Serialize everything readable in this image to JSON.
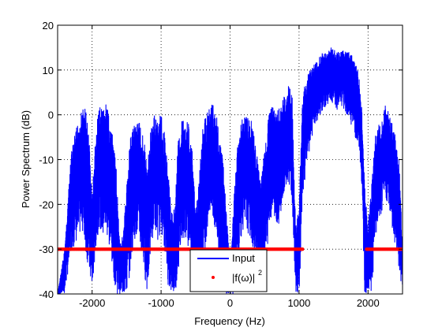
{
  "chart_data": {
    "type": "line",
    "title": "",
    "xlabel": "Frequency (Hz)",
    "ylabel": "Power Spectrum (dB)",
    "xlim": [
      -2500,
      2500
    ],
    "ylim": [
      -40,
      20
    ],
    "x_ticks": [
      -2000,
      -1000,
      0,
      1000,
      2000
    ],
    "x_tick_labels": [
      "-2000",
      "-1000",
      "0",
      "1000",
      "2000"
    ],
    "y_ticks": [
      -40,
      -30,
      -20,
      -10,
      0,
      10,
      20
    ],
    "y_tick_labels": [
      "-40",
      "-30",
      "-20",
      "-10",
      "0",
      "10",
      "20"
    ],
    "grid": true,
    "grid_style": "dotted",
    "legend": "bottom-center",
    "series": [
      {
        "name": "Input",
        "color": "#0000ff",
        "style": "line",
        "envelope": {
          "x": [
            -2500,
            -2400,
            -2300,
            -2200,
            -2150,
            -2100,
            -2050,
            -2000,
            -1950,
            -1900,
            -1850,
            -1800,
            -1750,
            -1700,
            -1650,
            -1600,
            -1550,
            -1500,
            -1450,
            -1400,
            -1350,
            -1300,
            -1250,
            -1200,
            -1150,
            -1100,
            -1050,
            -1000,
            -950,
            -900,
            -850,
            -800,
            -750,
            -700,
            -650,
            -600,
            -550,
            -500,
            -450,
            -400,
            -350,
            -300,
            -250,
            -200,
            -150,
            -100,
            -50,
            0,
            50,
            100,
            150,
            200,
            250,
            300,
            350,
            400,
            450,
            500,
            550,
            600,
            650,
            700,
            750,
            800,
            850,
            900,
            950,
            1000,
            1050,
            1100,
            1150,
            1200,
            1250,
            1300,
            1350,
            1400,
            1450,
            1500,
            1550,
            1600,
            1650,
            1700,
            1750,
            1800,
            1850,
            1900,
            1950,
            2000,
            2050,
            2100,
            2150,
            2200,
            2250,
            2300,
            2350,
            2400,
            2450,
            2500
          ],
          "peak": [
            -40,
            -30,
            -8,
            -1,
            1,
            2,
            -3,
            -18,
            -5,
            2,
            1,
            3,
            -1,
            -5,
            -12,
            -28,
            -27,
            -16,
            -5,
            -2,
            -1,
            -2,
            -5,
            -12,
            -3,
            0,
            -1,
            0,
            -4,
            -12,
            -22,
            -20,
            -5,
            -1,
            0,
            -2,
            -8,
            -22,
            -15,
            -3,
            0,
            2,
            3,
            1,
            -5,
            -10,
            -22,
            -35,
            -20,
            -8,
            -2,
            0,
            0,
            -1,
            -4,
            -10,
            -14,
            -8,
            -1,
            2,
            1,
            1,
            3,
            5,
            7,
            4,
            -25,
            -20,
            4,
            8,
            10,
            11,
            12,
            13,
            14,
            14,
            15,
            15,
            14,
            14,
            15,
            14,
            14,
            12,
            10,
            5,
            -15,
            -25,
            -15,
            -5,
            -2,
            -1,
            2,
            1,
            -2,
            -5,
            -10,
            -30
          ],
          "floor": [
            -40,
            -40,
            -30,
            -28,
            -25,
            -30,
            -35,
            -40,
            -30,
            -25,
            -28,
            -26,
            -30,
            -35,
            -40,
            -40,
            -40,
            -40,
            -35,
            -28,
            -27,
            -30,
            -35,
            -40,
            -30,
            -25,
            -28,
            -26,
            -30,
            -38,
            -40,
            -40,
            -35,
            -28,
            -27,
            -30,
            -38,
            -40,
            -40,
            -35,
            -28,
            -22,
            -24,
            -28,
            -34,
            -38,
            -40,
            -40,
            -40,
            -35,
            -28,
            -25,
            -26,
            -28,
            -32,
            -36,
            -40,
            -35,
            -28,
            -22,
            -23,
            -25,
            -20,
            -18,
            -15,
            -20,
            -40,
            -40,
            -20,
            -12,
            -8,
            -4,
            -2,
            0,
            1,
            2,
            3,
            2,
            1,
            2,
            1,
            0,
            -2,
            -4,
            -8,
            -14,
            -40,
            -40,
            -40,
            -30,
            -24,
            -22,
            -18,
            -22,
            -26,
            -30,
            -35,
            -40
          ]
        }
      },
      {
        "name": "|f(ω)|²",
        "legend_label_base": "|f(ω)|",
        "legend_label_sup": "2",
        "color": "#ff0000",
        "style": "points",
        "segments": [
          {
            "x": [
              -2500,
              1050
            ],
            "y": -30
          },
          {
            "x": [
              1980,
              2500
            ],
            "y": -30
          }
        ]
      }
    ]
  }
}
